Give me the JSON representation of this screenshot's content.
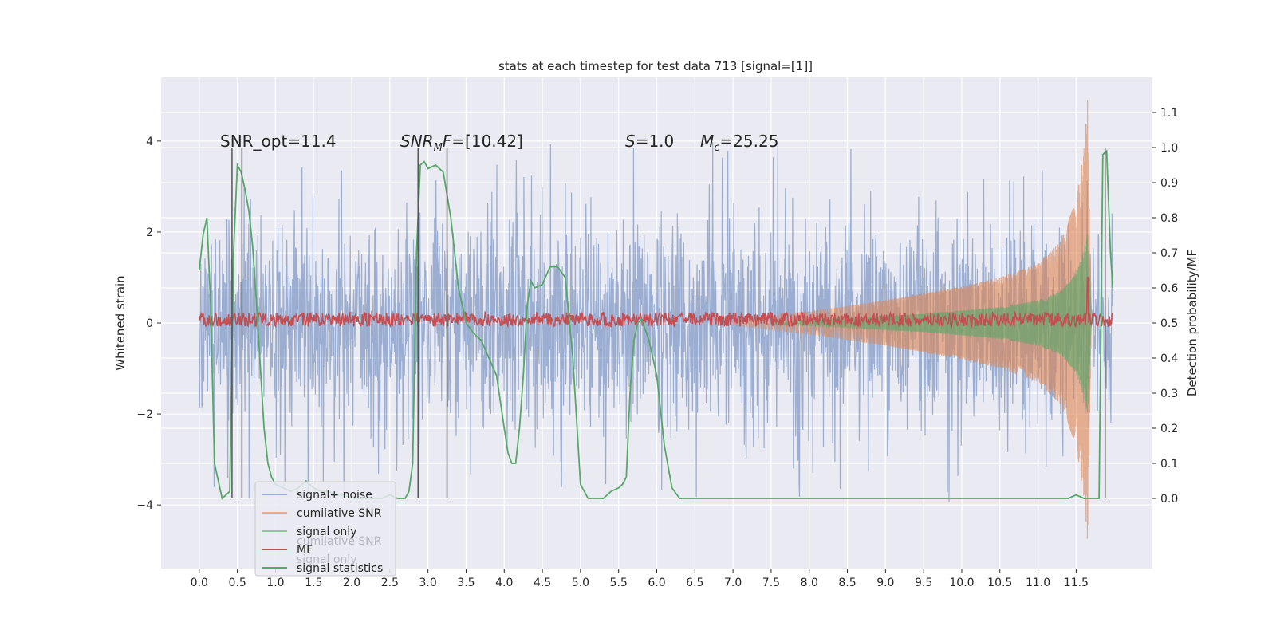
{
  "chart_data": {
    "type": "line",
    "title": "stats at each timestep for test data 713 [signal=[1]]",
    "ylabel_left": "Whitened strain",
    "ylabel_right": "Detection probability/MF",
    "x_ticks": [
      "0.0",
      "0.5",
      "1.0",
      "1.5",
      "2.0",
      "2.5",
      "3.0",
      "3.5",
      "4.0",
      "4.5",
      "5.0",
      "5.5",
      "6.0",
      "6.5",
      "7.0",
      "7.5",
      "8.0",
      "8.5",
      "9.0",
      "9.5",
      "10.0",
      "10.5",
      "11.0",
      "11.5"
    ],
    "xlim": [
      -0.5,
      12.5
    ],
    "y_left_ticks": [
      "4",
      "2",
      "0",
      "−2",
      "−4"
    ],
    "y_left_tick_values": [
      4,
      2,
      0,
      -2,
      -4
    ],
    "ylim_left": [
      -5.4,
      5.4
    ],
    "y_right_ticks": [
      "1.1",
      "1.0",
      "0.9",
      "0.8",
      "0.7",
      "0.6",
      "0.5",
      "0.4",
      "0.3",
      "0.2",
      "0.1",
      "0.0"
    ],
    "y_right_tick_values": [
      1.1,
      1.0,
      0.9,
      0.8,
      0.7,
      0.6,
      0.5,
      0.4,
      0.3,
      0.2,
      0.1,
      0.0
    ],
    "ylim_right": [
      -0.2,
      1.2
    ],
    "grid": true,
    "annotations": [
      {
        "id": "snr_opt",
        "text": "SNR_opt=11.4",
        "x": 0.2,
        "y": 4.0
      },
      {
        "id": "snr_mf",
        "prefix_italic": "SNR",
        "sub": "M",
        "mid_italic": "F",
        "text": "=[10.42]",
        "x": 2.6,
        "y": 4.0
      },
      {
        "id": "s",
        "italic": "S",
        "text": "=1.0",
        "x": 5.6,
        "y": 4.0
      },
      {
        "id": "mc",
        "italic": "M",
        "sub": "c",
        "text": "=25.25",
        "x": 6.6,
        "y": 4.0
      }
    ],
    "vertical_lines_x": [
      0.43,
      0.56,
      2.87,
      3.25,
      11.88
    ],
    "vertical_lines_range_right": [
      0.0,
      1.0
    ],
    "series": [
      {
        "name": "signal+ noise",
        "color": "#4c72b0",
        "axis": "left",
        "amplitude_typical": 1.6,
        "amplitude_max": 4.0,
        "x_range": [
          0,
          11.98
        ]
      },
      {
        "name": "cumilative SNR",
        "color": "#dd8452",
        "axis": "left",
        "envelope_x": [
          7.0,
          8.0,
          9.0,
          10.0,
          10.5,
          11.0,
          11.3,
          11.5,
          11.6,
          11.65,
          11.7
        ],
        "envelope_y": [
          0.05,
          0.25,
          0.5,
          0.8,
          1.0,
          1.3,
          1.8,
          2.7,
          3.8,
          4.9,
          0.0
        ]
      },
      {
        "name": "signal only",
        "color": "#55a868",
        "axis": "left",
        "envelope_x": [
          7.5,
          8.5,
          9.5,
          10.5,
          11.0,
          11.3,
          11.5,
          11.6,
          11.65,
          11.7
        ],
        "envelope_y": [
          0.03,
          0.1,
          0.2,
          0.35,
          0.5,
          0.7,
          1.1,
          1.6,
          2.0,
          0.0
        ]
      },
      {
        "name": "MF",
        "color": "#c44e52",
        "axis": "right",
        "baseline": 0.51,
        "noise": 0.02,
        "spike_x": 11.65,
        "spike_y": 0.63
      },
      {
        "name": "signal statistics",
        "color": "#55a868",
        "axis": "right",
        "x": [
          0.0,
          0.05,
          0.1,
          0.15,
          0.2,
          0.3,
          0.4,
          0.45,
          0.5,
          0.55,
          0.6,
          0.65,
          0.7,
          0.75,
          0.8,
          0.85,
          0.9,
          0.95,
          1.0,
          1.1,
          1.2,
          1.3,
          1.4,
          1.5,
          1.6,
          1.7,
          1.8,
          1.9,
          2.0,
          2.2,
          2.4,
          2.5,
          2.6,
          2.7,
          2.75,
          2.8,
          2.85,
          2.9,
          2.95,
          3.0,
          3.1,
          3.2,
          3.3,
          3.35,
          3.4,
          3.45,
          3.5,
          3.6,
          3.7,
          3.8,
          3.9,
          4.0,
          4.05,
          4.1,
          4.15,
          4.2,
          4.25,
          4.3,
          4.35,
          4.4,
          4.5,
          4.6,
          4.7,
          4.8,
          4.9,
          5.0,
          5.1,
          5.2,
          5.3,
          5.4,
          5.5,
          5.55,
          5.6,
          5.65,
          5.7,
          5.75,
          5.8,
          5.9,
          6.0,
          6.1,
          6.2,
          6.3,
          6.5,
          7.0,
          8.0,
          9.0,
          10.0,
          10.3,
          10.6,
          11.0,
          11.3,
          11.4,
          11.5,
          11.6,
          11.7,
          11.8,
          11.85,
          11.9,
          11.95,
          11.98
        ],
        "y": [
          0.65,
          0.75,
          0.8,
          0.55,
          0.1,
          0.0,
          0.02,
          0.7,
          0.95,
          0.93,
          0.88,
          0.82,
          0.72,
          0.56,
          0.38,
          0.2,
          0.1,
          0.06,
          0.04,
          0.03,
          0.02,
          0.03,
          0.05,
          0.03,
          0.02,
          0.02,
          0.01,
          0.01,
          0.0,
          0.0,
          0.0,
          0.01,
          0.0,
          0.0,
          0.02,
          0.1,
          0.7,
          0.95,
          0.96,
          0.94,
          0.95,
          0.93,
          0.8,
          0.7,
          0.6,
          0.55,
          0.5,
          0.47,
          0.45,
          0.4,
          0.35,
          0.2,
          0.13,
          0.1,
          0.1,
          0.2,
          0.35,
          0.55,
          0.62,
          0.6,
          0.61,
          0.66,
          0.66,
          0.63,
          0.4,
          0.04,
          0.0,
          0.0,
          0.0,
          0.02,
          0.03,
          0.04,
          0.06,
          0.3,
          0.45,
          0.5,
          0.51,
          0.45,
          0.35,
          0.15,
          0.03,
          0.0,
          0.0,
          0.0,
          0.0,
          0.0,
          0.0,
          0.0,
          0.0,
          0.0,
          0.0,
          0.0,
          0.01,
          0.0,
          0.0,
          0.0,
          0.98,
          0.99,
          0.7,
          0.6
        ]
      }
    ],
    "legend": {
      "placement": "lower-left",
      "entries": [
        {
          "label": "signal+ noise",
          "color": "#4c72b0",
          "alpha": 0.5
        },
        {
          "label": "cumilative SNR",
          "color": "#dd8452",
          "alpha": 0.6
        },
        {
          "label": "signal only",
          "color": "#55a868",
          "alpha": 0.6
        },
        {
          "label": "MF",
          "color": "#c44e52",
          "alpha": 1.0
        },
        {
          "label": "signal statistics",
          "color": "#55a868",
          "alpha": 1.0
        }
      ],
      "ghost_labels": [
        "cumilative SNR",
        "signal only"
      ]
    },
    "colors": {
      "background": "#eaeaf2",
      "grid": "#ffffff",
      "vline": "#555555"
    }
  }
}
